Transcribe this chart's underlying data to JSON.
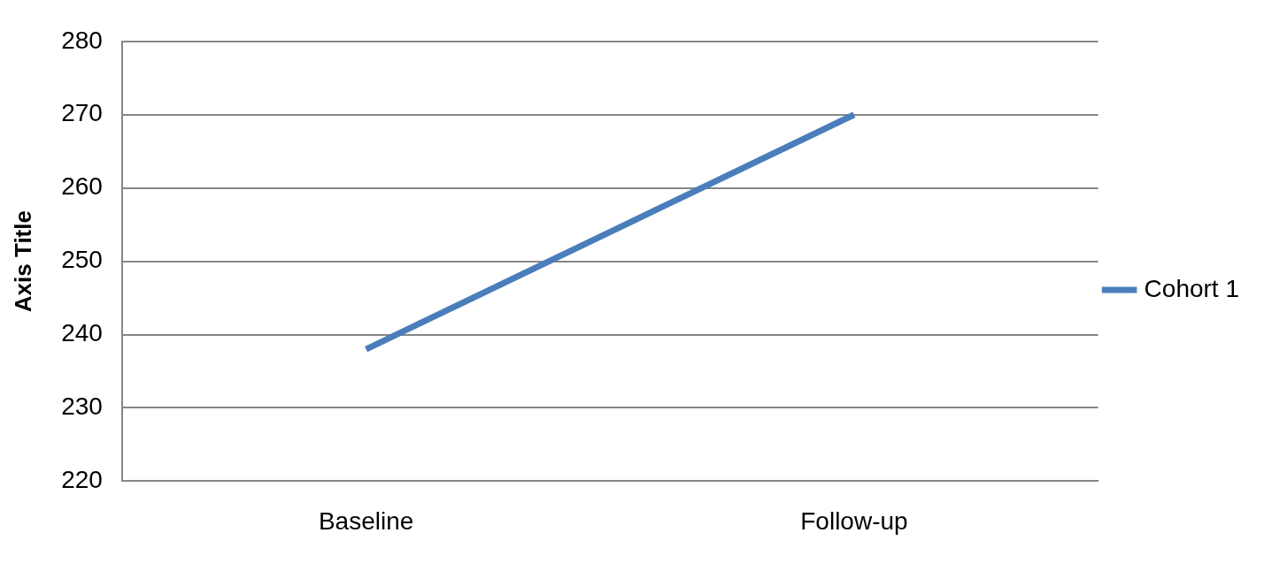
{
  "chart_data": {
    "type": "line",
    "ylabel": "Axis Title",
    "categories": [
      "Baseline",
      "Follow-up"
    ],
    "series": [
      {
        "name": "Cohort 1",
        "color": "#4a7ebb",
        "values": [
          238,
          270
        ]
      }
    ],
    "ylim": [
      220,
      280
    ],
    "yticks": [
      220,
      230,
      240,
      250,
      260,
      270,
      280
    ],
    "grid": "y",
    "legend": "right",
    "marker": "none",
    "line_style": "solid"
  }
}
